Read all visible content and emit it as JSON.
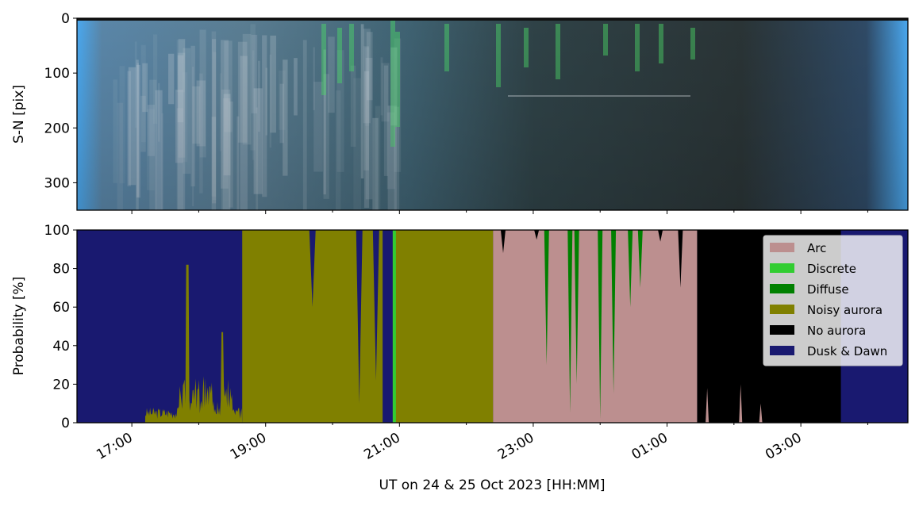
{
  "chart_data": [
    {
      "type": "image",
      "ylabel": "S-N [pix]",
      "ylim": [
        350,
        0
      ],
      "yticks": [
        0,
        100,
        200,
        300
      ]
    },
    {
      "type": "area",
      "stacked": true,
      "ylabel": "Probability [%]",
      "xlabel": "UT on 24 & 25 Oct 2023 [HH:MM]",
      "ylim": [
        0,
        100
      ],
      "yticks": [
        0,
        20,
        40,
        60,
        80,
        100
      ],
      "xlim_hours": [
        16.18,
        28.6
      ],
      "xtick_labels": [
        "17:00",
        "19:00",
        "21:00",
        "23:00",
        "01:00",
        "03:00"
      ],
      "xtick_hours": [
        17,
        19,
        21,
        23,
        25,
        27
      ],
      "legend_position": "top-right",
      "series": [
        {
          "name": "Arc",
          "color": "#bc8f8f"
        },
        {
          "name": "Discrete",
          "color": "#32cd32"
        },
        {
          "name": "Diffuse",
          "color": "#008000"
        },
        {
          "name": "Noisy aurora",
          "color": "#808000"
        },
        {
          "name": "No aurora",
          "color": "#000000"
        },
        {
          "name": "Dusk & Dawn",
          "color": "#191970"
        }
      ],
      "segments": [
        {
          "start": 16.18,
          "end": 18.65,
          "dominant": "Dusk & Dawn"
        },
        {
          "start": 18.65,
          "end": 20.75,
          "dominant": "Noisy aurora"
        },
        {
          "start": 20.75,
          "end": 20.9,
          "dominant": "Dusk & Dawn"
        },
        {
          "start": 20.9,
          "end": 22.4,
          "dominant": "Noisy aurora"
        },
        {
          "start": 22.4,
          "end": 25.45,
          "dominant": "Arc"
        },
        {
          "start": 25.45,
          "end": 27.6,
          "dominant": "No aurora"
        },
        {
          "start": 27.6,
          "end": 28.6,
          "dominant": "Dusk & Dawn"
        }
      ]
    }
  ]
}
